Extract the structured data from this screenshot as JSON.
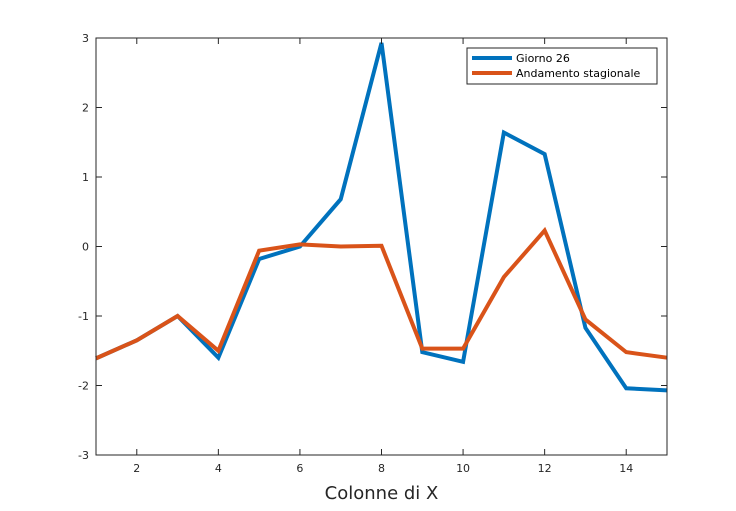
{
  "chart_data": {
    "type": "line",
    "title": "",
    "xlabel": "Colonne di X",
    "ylabel": "",
    "xlim": [
      1,
      15
    ],
    "ylim": [
      -3,
      3
    ],
    "xticks": [
      2,
      4,
      6,
      8,
      10,
      12,
      14
    ],
    "yticks": [
      -3,
      -2,
      -1,
      0,
      1,
      2,
      3
    ],
    "grid": false,
    "legend_position": "top-right",
    "x": [
      1,
      2,
      3,
      4,
      5,
      6,
      7,
      8,
      9,
      10,
      11,
      12,
      13,
      14,
      15
    ],
    "series": [
      {
        "name": "Giorno 26",
        "color": "#0072BD",
        "values": [
          -1.61,
          -1.35,
          -1.0,
          -1.6,
          -0.18,
          0.0,
          0.68,
          2.93,
          -1.52,
          -1.66,
          1.64,
          1.33,
          -1.17,
          -2.04,
          -2.07
        ]
      },
      {
        "name": "Andamento stagionale",
        "color": "#D95319",
        "values": [
          -1.61,
          -1.35,
          -1.0,
          -1.5,
          -0.06,
          0.03,
          0.0,
          0.01,
          -1.47,
          -1.47,
          -0.44,
          0.23,
          -1.05,
          -1.52,
          -1.6
        ]
      }
    ]
  }
}
